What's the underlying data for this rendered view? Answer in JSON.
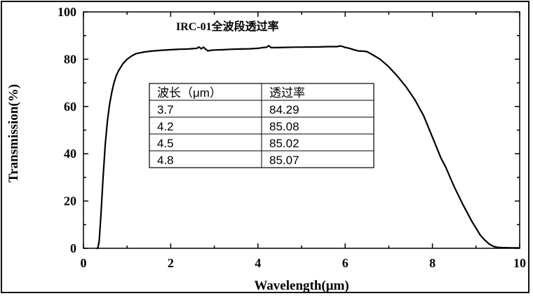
{
  "chart_data": {
    "type": "line",
    "title": "IRC-01全波段透过率",
    "xlabel": "Wavelength(μm)",
    "ylabel": "Transmission(%)",
    "xlim": [
      0,
      10
    ],
    "ylim": [
      0,
      100
    ],
    "x_ticks": [
      "0",
      "2",
      "4",
      "6",
      "8",
      "10"
    ],
    "y_ticks": [
      "0",
      "20",
      "40",
      "60",
      "80",
      "100"
    ],
    "grid": false,
    "legend": "none",
    "line_color": "#000000",
    "series": [
      {
        "x": [
          0.3,
          0.33,
          0.36,
          0.4,
          0.45,
          0.5,
          0.55,
          0.6,
          0.65,
          0.7,
          0.75,
          0.8,
          0.9,
          1.0,
          1.1,
          1.2,
          1.4,
          1.6,
          1.8,
          2.0,
          2.2,
          2.4,
          2.6,
          2.65,
          2.7,
          2.75,
          2.8,
          2.85,
          2.9,
          3.0,
          3.2,
          3.4,
          3.6,
          3.8,
          4.0,
          4.1,
          4.2,
          4.25,
          4.3,
          4.4,
          4.6,
          4.8,
          5.0,
          5.2,
          5.4,
          5.6,
          5.8,
          5.9,
          6.0,
          6.1,
          6.2,
          6.3,
          6.4,
          6.5,
          6.6,
          6.8,
          7.0,
          7.2,
          7.4,
          7.6,
          7.8,
          8.0,
          8.2,
          8.3,
          8.5,
          8.7,
          8.9,
          9.1,
          9.2,
          9.3,
          9.4,
          9.5,
          9.6,
          9.8,
          10.0
        ],
        "y": [
          0,
          0,
          3,
          14,
          30,
          44,
          54,
          61,
          66,
          70,
          73,
          75,
          78,
          80,
          81.3,
          82.3,
          83.1,
          83.5,
          83.8,
          84.0,
          84.2,
          84.3,
          84.6,
          85.2,
          84.4,
          85.1,
          84.3,
          83.5,
          83.7,
          83.9,
          84.0,
          84.2,
          84.3,
          84.4,
          84.6,
          84.9,
          85.08,
          85.7,
          84.9,
          84.9,
          85.0,
          85.07,
          85.1,
          85.15,
          85.2,
          85.3,
          85.3,
          85.6,
          85.0,
          84.6,
          84.0,
          83.5,
          83.4,
          83.2,
          82.2,
          80.0,
          76.8,
          72.8,
          68.2,
          62.8,
          56.0,
          47.0,
          38.0,
          34.5,
          26.0,
          18.5,
          11.5,
          5.5,
          3.5,
          1.8,
          0.8,
          0.4,
          0.3,
          0.2,
          0.2
        ]
      }
    ],
    "table": {
      "headers": [
        "波长（μm）",
        "透过率"
      ],
      "rows": [
        [
          "3.7",
          "84.29"
        ],
        [
          "4.2",
          "85.08"
        ],
        [
          "4.5",
          "85.02"
        ],
        [
          "4.8",
          "85.07"
        ]
      ]
    }
  }
}
